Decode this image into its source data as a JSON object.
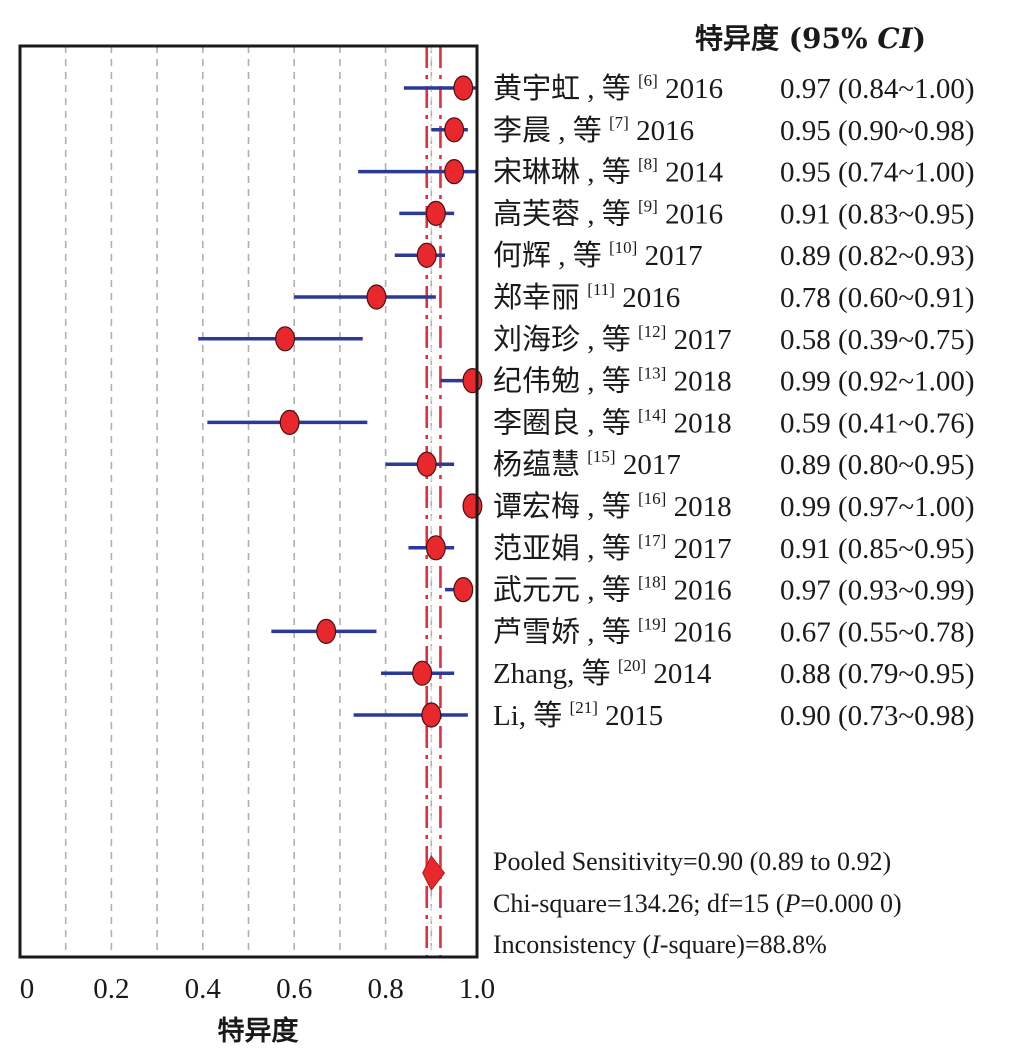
{
  "chart_data": {
    "type": "forest",
    "column_header": {
      "prefix": "特异度 (95% ",
      "ci": "CI",
      "suffix": ")"
    },
    "xlabel": "特异度",
    "xlim": [
      0,
      1.0
    ],
    "x_ticks": [
      "0",
      "0.2",
      "0.4",
      "0.6",
      "0.8",
      "1.0"
    ],
    "grid": "vertical dashed at 0.1 intervals",
    "pooled": {
      "estimate": 0.9,
      "lower": 0.89,
      "upper": 0.92
    },
    "studies": [
      {
        "author": "黄宇虹 , 等",
        "ref": "[6]",
        "year": "2016",
        "estimate": 0.97,
        "lower": 0.84,
        "upper": 1.0,
        "ci_text": "0.97 (0.84~1.00)"
      },
      {
        "author": "李晨 , 等",
        "ref": "[7]",
        "year": "2016",
        "estimate": 0.95,
        "lower": 0.9,
        "upper": 0.98,
        "ci_text": "0.95 (0.90~0.98)"
      },
      {
        "author": "宋琳琳 , 等",
        "ref": "[8]",
        "year": "2014",
        "estimate": 0.95,
        "lower": 0.74,
        "upper": 1.0,
        "ci_text": "0.95 (0.74~1.00)"
      },
      {
        "author": "高芙蓉 , 等",
        "ref": "[9]",
        "year": "2016",
        "estimate": 0.91,
        "lower": 0.83,
        "upper": 0.95,
        "ci_text": "0.91 (0.83~0.95)"
      },
      {
        "author": "何辉 , 等",
        "ref": "[10]",
        "year": "2017",
        "estimate": 0.89,
        "lower": 0.82,
        "upper": 0.93,
        "ci_text": "0.89 (0.82~0.93)"
      },
      {
        "author": "郑幸丽",
        "ref": "[11]",
        "year": "2016",
        "estimate": 0.78,
        "lower": 0.6,
        "upper": 0.91,
        "ci_text": "0.78 (0.60~0.91)"
      },
      {
        "author": "刘海珍 , 等",
        "ref": "[12]",
        "year": "2017",
        "estimate": 0.58,
        "lower": 0.39,
        "upper": 0.75,
        "ci_text": "0.58 (0.39~0.75)"
      },
      {
        "author": "纪伟勉 , 等",
        "ref": "[13]",
        "year": "2018",
        "estimate": 0.99,
        "lower": 0.92,
        "upper": 1.0,
        "ci_text": "0.99 (0.92~1.00)"
      },
      {
        "author": "李圈良 , 等",
        "ref": "[14]",
        "year": "2018",
        "estimate": 0.59,
        "lower": 0.41,
        "upper": 0.76,
        "ci_text": "0.59 (0.41~0.76)"
      },
      {
        "author": "杨蕴慧",
        "ref": "[15]",
        "year": "2017",
        "estimate": 0.89,
        "lower": 0.8,
        "upper": 0.95,
        "ci_text": "0.89 (0.80~0.95)"
      },
      {
        "author": "谭宏梅 , 等",
        "ref": "[16]",
        "year": "2018",
        "estimate": 0.99,
        "lower": 0.97,
        "upper": 1.0,
        "ci_text": "0.99 (0.97~1.00)"
      },
      {
        "author": "范亚娟 , 等",
        "ref": "[17]",
        "year": "2017",
        "estimate": 0.91,
        "lower": 0.85,
        "upper": 0.95,
        "ci_text": "0.91 (0.85~0.95)"
      },
      {
        "author": "武元元 , 等",
        "ref": "[18]",
        "year": "2016",
        "estimate": 0.97,
        "lower": 0.93,
        "upper": 0.99,
        "ci_text": "0.97 (0.93~0.99)"
      },
      {
        "author": "芦雪娇 , 等",
        "ref": "[19]",
        "year": "2016",
        "estimate": 0.67,
        "lower": 0.55,
        "upper": 0.78,
        "ci_text": "0.67 (0.55~0.78)"
      },
      {
        "author": "Zhang, 等",
        "ref": "[20]",
        "year": "2014",
        "estimate": 0.88,
        "lower": 0.79,
        "upper": 0.95,
        "ci_text": "0.88 (0.79~0.95)"
      },
      {
        "author": "Li, 等",
        "ref": "[21]",
        "year": "2015",
        "estimate": 0.9,
        "lower": 0.73,
        "upper": 0.98,
        "ci_text": "0.90 (0.73~0.98)"
      }
    ],
    "summary": {
      "pooled_text": "Pooled Sensitivity=0.90 (0.89 to 0.92)",
      "chi_prefix": "Chi-square=134.26; df=15 (",
      "chi_p": "P",
      "chi_suffix": "=0.000 0)",
      "incon_prefix": "Inconsistency (",
      "incon_i": "I",
      "incon_suffix": "-square)=88.8%"
    },
    "colors": {
      "ci_line": "#2b3a97",
      "point": "#e8282c",
      "reference_line": "#e03040",
      "grid": "#b0b0b0",
      "frame": "#1a1a1a"
    }
  }
}
